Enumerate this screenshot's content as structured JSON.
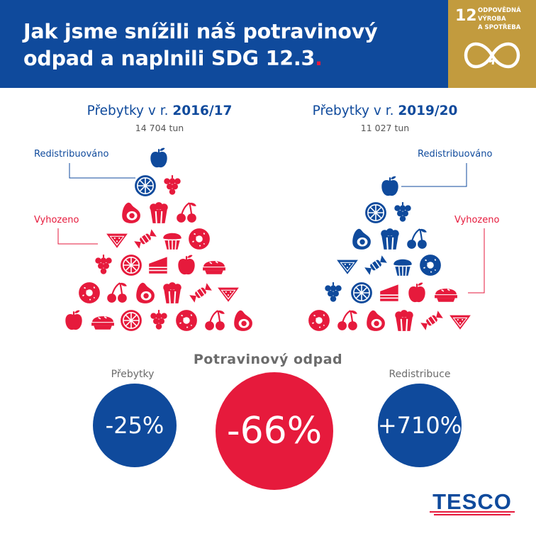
{
  "header": {
    "title_line1": "Jak jsme snížili náš potravinový",
    "title_line2": "odpad a naplnili SDG 12.3",
    "title_dot": ".",
    "sdg": {
      "number": "12",
      "text_lines": [
        "ODPOVĚDNÁ",
        "VÝROBA",
        "A SPOTŘEBA"
      ]
    }
  },
  "colors": {
    "blue": "#0f4a9c",
    "red": "#e61a3c",
    "gold": "#c29b3e",
    "gray": "#6b6b6b"
  },
  "left": {
    "heading_prefix": "Přebytky v r. ",
    "heading_year": "2016/17",
    "tonnage": "14 704 tun",
    "redistributed_label": "Redistribuováno",
    "discarded_label": "Vyhozeno"
  },
  "right": {
    "heading_prefix": "Přebytky v r. ",
    "heading_year": "2019/20",
    "tonnage": "11 027 tun",
    "redistributed_label": "Redistribuováno",
    "discarded_label": "Vyhozeno"
  },
  "summary": {
    "title": "Potravinový odpad",
    "surplus_label": "Přebytky",
    "surplus_value": "-25%",
    "waste_value": "-66%",
    "redistribution_label": "Redistribuce",
    "redistribution_value": "+710%"
  },
  "logo": {
    "text": "TESCO"
  }
}
